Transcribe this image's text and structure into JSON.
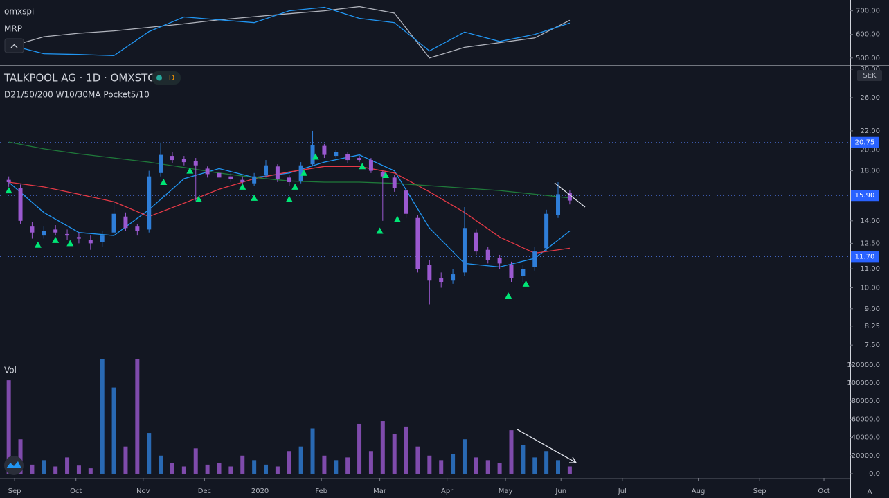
{
  "chart_data": [
    {
      "type": "line",
      "x": [
        0,
        12,
        24,
        36,
        48,
        60,
        72,
        84,
        96,
        108,
        120,
        132,
        144,
        156,
        168,
        180,
        192
      ],
      "series": [
        {
          "name": "omxspi",
          "color": "#b2b5be",
          "values": [
            547,
            590,
            605,
            615,
            630,
            645,
            662,
            675,
            688,
            700,
            718,
            690,
            500,
            545,
            565,
            585,
            660
          ]
        },
        {
          "name": "MRP",
          "color": "#2196f3",
          "values": [
            556,
            518,
            515,
            510,
            612,
            674,
            662,
            650,
            700,
            715,
            668,
            650,
            530,
            610,
            570,
            600,
            648
          ]
        }
      ],
      "xlim": [
        -3,
        288
      ],
      "ylim": [
        470,
        740
      ],
      "yticks": [
        {
          "value": 500,
          "label": "500.00"
        },
        {
          "value": 600,
          "label": "600.00"
        },
        {
          "value": 700,
          "label": "700.00"
        }
      ]
    },
    {
      "type": "candlestick",
      "title": "TALKPOOL AG · 1D · OMXSTO",
      "subtitle": "D21/50/200 W10/30MA Pocket5/10",
      "badge": "D",
      "currency": "SEK",
      "x": [
        0,
        4,
        8,
        12,
        16,
        20,
        24,
        28,
        32,
        36,
        40,
        44,
        48,
        52,
        56,
        60,
        64,
        68,
        72,
        76,
        80,
        84,
        88,
        92,
        96,
        100,
        104,
        108,
        112,
        116,
        120,
        124,
        128,
        132,
        136,
        140,
        144,
        148,
        152,
        156,
        160,
        164,
        168,
        172,
        176,
        180,
        184,
        188,
        192
      ],
      "open": [
        17.2,
        16.5,
        13.6,
        13.0,
        13.4,
        13.1,
        12.9,
        12.7,
        12.6,
        13.2,
        14.3,
        13.6,
        13.4,
        17.8,
        19.4,
        19.1,
        18.9,
        18.2,
        17.8,
        17.5,
        17.2,
        16.9,
        17.6,
        18.4,
        17.4,
        17.1,
        18.6,
        20.4,
        19.4,
        19.6,
        19.2,
        19.0,
        17.9,
        17.4,
        16.3,
        14.2,
        11.2,
        10.5,
        10.4,
        10.8,
        13.2,
        12.1,
        11.6,
        11.2,
        10.6,
        11.1,
        12.2,
        14.4,
        16.1
      ],
      "high": [
        17.5,
        16.8,
        13.9,
        13.6,
        13.7,
        13.4,
        13.2,
        13.0,
        13.3,
        15.5,
        14.6,
        13.8,
        18.0,
        20.75,
        19.8,
        19.4,
        19.2,
        18.4,
        18.0,
        17.8,
        17.5,
        17.8,
        19.0,
        18.6,
        17.6,
        18.8,
        22.0,
        20.6,
        20.0,
        19.8,
        19.4,
        19.2,
        18.0,
        17.6,
        16.5,
        14.4,
        11.5,
        10.8,
        11.0,
        15.0,
        13.4,
        12.3,
        11.8,
        11.4,
        11.2,
        12.3,
        14.8,
        17.0,
        16.3
      ],
      "low": [
        16.6,
        13.8,
        12.8,
        12.8,
        13.0,
        12.7,
        12.5,
        12.1,
        12.3,
        13.0,
        13.3,
        13.0,
        13.2,
        17.5,
        18.7,
        18.5,
        15.5,
        17.4,
        17.1,
        17.0,
        16.8,
        16.7,
        17.4,
        17.0,
        16.7,
        16.9,
        18.4,
        19.2,
        19.2,
        18.7,
        18.8,
        17.8,
        14.0,
        16.2,
        14.2,
        10.8,
        9.2,
        10.0,
        10.2,
        10.6,
        11.8,
        11.3,
        11.0,
        10.3,
        10.3,
        10.9,
        12.0,
        14.2,
        15.2
      ],
      "close": [
        17.0,
        14.0,
        13.2,
        13.3,
        13.2,
        13.0,
        12.8,
        12.5,
        13.0,
        14.5,
        13.5,
        13.3,
        17.5,
        19.5,
        19.0,
        18.8,
        18.5,
        17.7,
        17.4,
        17.3,
        17.0,
        17.5,
        18.5,
        17.3,
        17.0,
        18.5,
        20.5,
        19.5,
        19.8,
        19.0,
        19.0,
        18.0,
        17.5,
        16.5,
        14.5,
        11.0,
        10.4,
        10.3,
        10.7,
        13.5,
        12.0,
        11.5,
        11.3,
        10.5,
        11.0,
        12.0,
        14.5,
        16.0,
        15.5
      ],
      "up_color": "#2f7ed8",
      "down_color": "#9b59d0",
      "series": [
        {
          "color": "#2196f3",
          "x": [
            0,
            12,
            24,
            36,
            48,
            60,
            72,
            84,
            96,
            108,
            120,
            132,
            144,
            156,
            168,
            180,
            192
          ],
          "values": [
            17.0,
            14.6,
            13.2,
            13.0,
            14.8,
            17.3,
            18.2,
            17.4,
            17.8,
            18.8,
            19.5,
            18.0,
            13.5,
            11.3,
            11.1,
            11.6,
            13.3
          ]
        },
        {
          "color": "#e53946",
          "x": [
            0,
            12,
            24,
            36,
            48,
            60,
            72,
            84,
            96,
            108,
            120,
            132,
            144,
            156,
            168,
            180,
            192
          ],
          "values": [
            17.0,
            16.6,
            16.0,
            15.4,
            14.3,
            15.3,
            16.4,
            17.3,
            17.9,
            18.4,
            18.4,
            17.8,
            16.2,
            14.6,
            12.9,
            11.9,
            12.2
          ]
        },
        {
          "color": "#1f7a3a",
          "x": [
            0,
            12,
            24,
            36,
            48,
            60,
            72,
            84,
            96,
            108,
            120,
            132,
            144,
            156,
            168,
            180,
            192
          ],
          "values": [
            20.8,
            20.1,
            19.6,
            19.2,
            18.8,
            18.3,
            17.8,
            17.4,
            17.1,
            17.0,
            17.0,
            16.9,
            16.7,
            16.5,
            16.3,
            16.0,
            15.7
          ]
        }
      ],
      "signals": {
        "color": "#00e676",
        "x": [
          0,
          10,
          16,
          21,
          53,
          62,
          65,
          80,
          84,
          96,
          98,
          101,
          105,
          121,
          127,
          129,
          133,
          171,
          177
        ],
        "values": [
          16.3,
          12.4,
          12.7,
          12.5,
          17.0,
          18.0,
          15.6,
          16.6,
          15.7,
          15.6,
          16.6,
          17.8,
          19.3,
          18.4,
          13.3,
          17.6,
          14.1,
          9.6,
          10.2
        ]
      },
      "price_lines": [
        {
          "value": 20.75,
          "label": "20.75"
        },
        {
          "value": 15.9,
          "label": "15.90"
        },
        {
          "value": 11.7,
          "label": "11.70"
        }
      ],
      "log_scale": true,
      "xlim": [
        -3,
        288
      ],
      "ylim": [
        7.0,
        30.4
      ],
      "yticks": [
        {
          "value": 30,
          "label": "30.00"
        },
        {
          "value": 26,
          "label": "26.00"
        },
        {
          "value": 22,
          "label": "22.00"
        },
        {
          "value": 20,
          "label": "20.00"
        },
        {
          "value": 18,
          "label": "18.00"
        },
        {
          "value": 14,
          "label": "14.00"
        },
        {
          "value": 12.5,
          "label": "12.50"
        },
        {
          "value": 11,
          "label": "11.00"
        },
        {
          "value": 10,
          "label": "10.00"
        },
        {
          "value": 9,
          "label": "9.00"
        },
        {
          "value": 8.25,
          "label": "8.25"
        },
        {
          "value": 7.5,
          "label": "7.50"
        }
      ]
    },
    {
      "type": "bar",
      "title": "Vol",
      "scale_mode": "A",
      "x": [
        0,
        4,
        8,
        12,
        16,
        20,
        24,
        28,
        32,
        36,
        40,
        44,
        48,
        52,
        56,
        60,
        64,
        68,
        72,
        76,
        80,
        84,
        88,
        92,
        96,
        100,
        104,
        108,
        112,
        116,
        120,
        124,
        128,
        132,
        136,
        140,
        144,
        148,
        152,
        156,
        160,
        164,
        168,
        172,
        176,
        180,
        184,
        188,
        192
      ],
      "values": [
        103000,
        38000,
        10000,
        15000,
        8000,
        18000,
        9000,
        6000,
        130000,
        95000,
        30000,
        130000,
        45000,
        20000,
        12000,
        8000,
        28000,
        10000,
        12000,
        8000,
        20000,
        15000,
        10000,
        8000,
        25000,
        30000,
        50000,
        20000,
        15000,
        18000,
        55000,
        25000,
        58000,
        44000,
        52000,
        30000,
        20000,
        15000,
        22000,
        38000,
        18000,
        15000,
        12000,
        48000,
        32000,
        18000,
        25000,
        15000,
        8000
      ],
      "xlim": [
        -3,
        288
      ],
      "ylim": [
        -4600,
        126000
      ],
      "yticks": [
        {
          "value": 0,
          "label": "0.0"
        },
        {
          "value": 20000,
          "label": "20000.0"
        },
        {
          "value": 40000,
          "label": "40000.0"
        },
        {
          "value": 60000,
          "label": "60000.0"
        },
        {
          "value": 80000,
          "label": "80000.0"
        },
        {
          "value": 100000,
          "label": "100000.0"
        },
        {
          "value": 120000,
          "label": "120000.0"
        }
      ],
      "xticks": [
        {
          "value": 2,
          "label": "Sep"
        },
        {
          "value": 23,
          "label": "Oct"
        },
        {
          "value": 46,
          "label": "Nov"
        },
        {
          "value": 67,
          "label": "Dec"
        },
        {
          "value": 86,
          "label": "2020"
        },
        {
          "value": 107,
          "label": "Feb"
        },
        {
          "value": 127,
          "label": "Mar"
        },
        {
          "value": 150,
          "label": "Apr"
        },
        {
          "value": 170,
          "label": "May"
        },
        {
          "value": 189,
          "label": "Jun"
        },
        {
          "value": 210,
          "label": "Jul"
        },
        {
          "value": 236,
          "label": "Aug"
        },
        {
          "value": 257,
          "label": "Sep"
        },
        {
          "value": 279,
          "label": "Oct"
        }
      ]
    }
  ]
}
